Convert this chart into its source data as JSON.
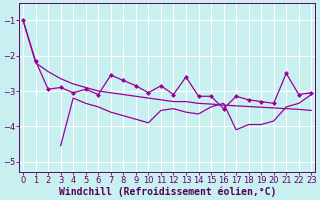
{
  "xlabel": "Windchill (Refroidissement éolien,°C)",
  "bg_color": "#c8f0f0",
  "line_color": "#990099",
  "grid_color": "#ffffff",
  "xlim": [
    -0.3,
    23.3
  ],
  "ylim": [
    -5.3,
    -0.5
  ],
  "yticks": [
    -5,
    -4,
    -3,
    -2,
    -1
  ],
  "xticks": [
    0,
    1,
    2,
    3,
    4,
    5,
    6,
    7,
    8,
    9,
    10,
    11,
    12,
    13,
    14,
    15,
    16,
    17,
    18,
    19,
    20,
    21,
    22,
    23
  ],
  "line_jagged_x": [
    0,
    1,
    2,
    3,
    4,
    5,
    6,
    7,
    8,
    9,
    10,
    11,
    12,
    13,
    14,
    15,
    16,
    17,
    18,
    19,
    20,
    21,
    22,
    23
  ],
  "line_jagged_y": [
    -1.0,
    -2.15,
    -2.95,
    -2.9,
    -3.05,
    -2.95,
    -3.1,
    -2.55,
    -2.7,
    -2.85,
    -3.05,
    -2.85,
    -3.1,
    -2.6,
    -3.15,
    -3.15,
    -3.5,
    -3.15,
    -3.25,
    -3.3,
    -3.35,
    -2.5,
    -3.1,
    -3.05
  ],
  "line_diag_x": [
    0,
    1,
    2,
    3,
    4,
    5,
    6,
    7,
    8,
    9,
    10,
    11,
    12,
    13,
    14,
    15,
    16,
    17,
    18,
    19,
    20,
    21,
    22,
    23
  ],
  "line_diag_y": [
    -1.0,
    -2.2,
    -2.45,
    -2.65,
    -2.8,
    -2.9,
    -3.0,
    -3.05,
    -3.1,
    -3.15,
    -3.2,
    -3.25,
    -3.3,
    -3.3,
    -3.35,
    -3.37,
    -3.4,
    -3.42,
    -3.44,
    -3.46,
    -3.48,
    -3.5,
    -3.52,
    -3.55
  ],
  "line_lower_x": [
    3,
    4,
    5,
    6,
    7,
    8,
    9,
    10,
    11,
    12,
    13,
    14,
    15,
    16,
    17,
    18,
    19,
    20,
    21,
    22,
    23
  ],
  "line_lower_y": [
    -4.55,
    -3.2,
    -3.35,
    -3.45,
    -3.6,
    -3.7,
    -3.8,
    -3.9,
    -3.55,
    -3.5,
    -3.6,
    -3.65,
    -3.45,
    -3.35,
    -4.1,
    -3.95,
    -3.95,
    -3.85,
    -3.45,
    -3.35,
    -3.1
  ],
  "xlabel_fontsize": 7,
  "tick_fontsize": 6
}
